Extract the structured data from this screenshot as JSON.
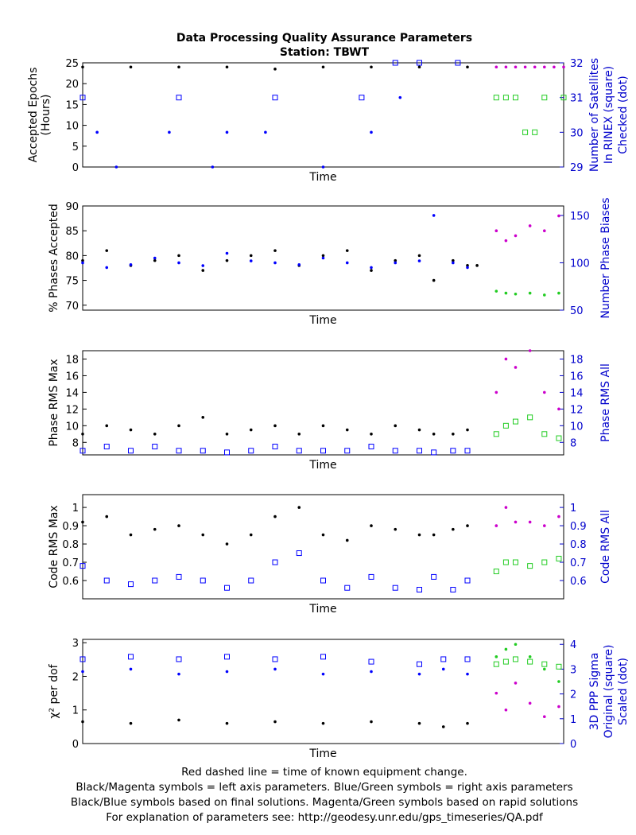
{
  "title": "Data Processing Quality Assurance Parameters",
  "subtitle": "Station: TBWT",
  "footer": [
    "Red dashed line = time of known equipment change.",
    "Black/Magenta symbols = left axis parameters. Blue/Green symbols = right axis parameters",
    "Black/Blue symbols based on final solutions.  Magenta/Green symbols based on rapid solutions",
    "For explanation of parameters see: http://geodesy.unr.edu/gps_timeseries/QA.pdf"
  ],
  "colors": {
    "left_final": "#000000",
    "left_rapid": "#cc00cc",
    "right_final": "#0000ff",
    "right_rapid": "#22cc22",
    "right_axis": "#0000cc"
  },
  "chart_data": [
    {
      "type": "scatter",
      "xlabel": "Time",
      "ylabel_left": [
        "Accepted Epochs",
        "(Hours)"
      ],
      "ylabel_right": [
        "Number of Satellites",
        "In RINEX (square)",
        "Checked (dot)"
      ],
      "ylim_left": [
        0,
        25
      ],
      "ylim_right": [
        29,
        32
      ],
      "yticks_left": [
        0,
        5,
        10,
        15,
        20,
        25
      ],
      "yticks_right": [
        29,
        30,
        31,
        32
      ],
      "series": [
        {
          "role": "left_final",
          "x": [
            0.0,
            0.1,
            0.2,
            0.3,
            0.4,
            0.5,
            0.6,
            0.7,
            0.8
          ],
          "y": [
            24,
            24,
            24,
            24,
            23.5,
            24,
            24,
            24,
            24
          ]
        },
        {
          "role": "left_rapid",
          "x": [
            0.86,
            0.88,
            0.9,
            0.92,
            0.94,
            0.96,
            0.98,
            1.0
          ],
          "y": [
            24,
            24,
            24,
            24,
            24,
            24,
            24,
            24
          ]
        },
        {
          "role": "right_final_square",
          "x": [
            0.0,
            0.2,
            0.4,
            0.58,
            0.65,
            0.7,
            0.78
          ],
          "y": [
            31,
            31,
            31,
            31,
            32,
            32,
            32
          ]
        },
        {
          "role": "right_final_dot",
          "x": [
            0.03,
            0.07,
            0.18,
            0.27,
            0.3,
            0.38,
            0.5,
            0.6,
            0.66
          ],
          "y": [
            30,
            29,
            30,
            29,
            30,
            30,
            29,
            30,
            31
          ]
        },
        {
          "role": "right_rapid_square",
          "x": [
            0.86,
            0.88,
            0.9,
            0.92,
            0.94,
            0.96,
            1.0
          ],
          "y": [
            31,
            31,
            31,
            30,
            30,
            31,
            31
          ]
        }
      ]
    },
    {
      "type": "scatter",
      "xlabel": "Time",
      "ylabel_left": [
        "% Phases Accepted"
      ],
      "ylabel_right": [
        "Number Phase Biases"
      ],
      "ylim_left": [
        69,
        90
      ],
      "ylim_right": [
        50,
        160
      ],
      "yticks_left": [
        70,
        75,
        80,
        85,
        90
      ],
      "yticks_right": [
        50,
        100,
        150
      ],
      "series": [
        {
          "role": "left_final",
          "x": [
            0.0,
            0.05,
            0.1,
            0.15,
            0.2,
            0.25,
            0.3,
            0.35,
            0.4,
            0.45,
            0.5,
            0.55,
            0.6,
            0.65,
            0.7,
            0.73,
            0.77,
            0.8,
            0.82
          ],
          "y": [
            79,
            81,
            78,
            79,
            80,
            77,
            79,
            80,
            81,
            78,
            80,
            81,
            77,
            79,
            80,
            75,
            79,
            78,
            78
          ]
        },
        {
          "role": "left_rapid",
          "x": [
            0.86,
            0.88,
            0.9,
            0.93,
            0.96,
            0.99
          ],
          "y": [
            85,
            83,
            84,
            86,
            85,
            88
          ]
        },
        {
          "role": "right_final",
          "x": [
            0.0,
            0.05,
            0.1,
            0.15,
            0.2,
            0.25,
            0.3,
            0.35,
            0.4,
            0.45,
            0.5,
            0.55,
            0.6,
            0.65,
            0.7,
            0.73,
            0.77,
            0.8
          ],
          "y": [
            100,
            95,
            98,
            105,
            100,
            97,
            110,
            102,
            100,
            98,
            105,
            100,
            95,
            100,
            102,
            150,
            100,
            95
          ]
        },
        {
          "role": "right_rapid",
          "x": [
            0.86,
            0.88,
            0.9,
            0.93,
            0.96,
            0.99
          ],
          "y": [
            70,
            68,
            67,
            68,
            66,
            68
          ]
        }
      ]
    },
    {
      "type": "scatter",
      "xlabel": "Time",
      "ylabel_left": [
        "Phase RMS Max"
      ],
      "ylabel_right": [
        "Phase RMS All"
      ],
      "ylim_left": [
        6.5,
        19
      ],
      "ylim_right": [
        6.5,
        19
      ],
      "yticks_left": [
        8,
        10,
        12,
        14,
        16,
        18
      ],
      "yticks_right": [
        8,
        10,
        12,
        14,
        16,
        18
      ],
      "series": [
        {
          "role": "left_final",
          "x": [
            0.0,
            0.05,
            0.1,
            0.15,
            0.2,
            0.25,
            0.3,
            0.35,
            0.4,
            0.45,
            0.5,
            0.55,
            0.6,
            0.65,
            0.7,
            0.73,
            0.77,
            0.8
          ],
          "y": [
            9,
            10,
            9.5,
            9,
            10,
            11,
            9,
            9.5,
            10,
            9,
            10,
            9.5,
            9,
            10,
            9.5,
            9,
            9,
            9.5
          ]
        },
        {
          "role": "left_rapid",
          "x": [
            0.86,
            0.88,
            0.9,
            0.93,
            0.96,
            0.99
          ],
          "y": [
            14,
            18,
            17,
            19,
            14,
            12
          ]
        },
        {
          "role": "right_final",
          "x": [
            0.0,
            0.05,
            0.1,
            0.15,
            0.2,
            0.25,
            0.3,
            0.35,
            0.4,
            0.45,
            0.5,
            0.55,
            0.6,
            0.65,
            0.7,
            0.73,
            0.77,
            0.8
          ],
          "y": [
            7,
            7.5,
            7,
            7.5,
            7,
            7,
            6.8,
            7,
            7.5,
            7,
            7,
            7,
            7.5,
            7,
            7,
            6.8,
            7,
            7
          ]
        },
        {
          "role": "right_rapid",
          "x": [
            0.86,
            0.88,
            0.9,
            0.93,
            0.96,
            0.99
          ],
          "y": [
            9,
            10,
            10.5,
            11,
            9,
            8.5
          ]
        }
      ]
    },
    {
      "type": "scatter",
      "xlabel": "Time",
      "ylabel_left": [
        "Code RMS Max"
      ],
      "ylabel_right": [
        "Code RMS All"
      ],
      "ylim_left": [
        0.5,
        1.07
      ],
      "ylim_right": [
        0.5,
        1.07
      ],
      "yticks_left": [
        0.6,
        0.7,
        0.8,
        0.9,
        1
      ],
      "yticks_right": [
        0.6,
        0.7,
        0.8,
        0.9,
        1
      ],
      "series": [
        {
          "role": "left_final",
          "x": [
            0.0,
            0.05,
            0.1,
            0.15,
            0.2,
            0.25,
            0.3,
            0.35,
            0.4,
            0.45,
            0.5,
            0.55,
            0.6,
            0.65,
            0.7,
            0.73,
            0.77,
            0.8
          ],
          "y": [
            0.92,
            0.95,
            0.85,
            0.88,
            0.9,
            0.85,
            0.8,
            0.85,
            0.95,
            1.0,
            0.85,
            0.82,
            0.9,
            0.88,
            0.85,
            0.85,
            0.88,
            0.9
          ]
        },
        {
          "role": "left_rapid",
          "x": [
            0.86,
            0.88,
            0.9,
            0.93,
            0.96,
            0.99
          ],
          "y": [
            0.9,
            1.0,
            0.92,
            0.92,
            0.9,
            0.95
          ]
        },
        {
          "role": "right_final",
          "x": [
            0.0,
            0.05,
            0.1,
            0.15,
            0.2,
            0.25,
            0.3,
            0.35,
            0.4,
            0.45,
            0.5,
            0.55,
            0.6,
            0.65,
            0.7,
            0.73,
            0.77,
            0.8
          ],
          "y": [
            0.68,
            0.6,
            0.58,
            0.6,
            0.62,
            0.6,
            0.56,
            0.6,
            0.7,
            0.75,
            0.6,
            0.56,
            0.62,
            0.56,
            0.55,
            0.62,
            0.55,
            0.6
          ]
        },
        {
          "role": "right_rapid",
          "x": [
            0.86,
            0.88,
            0.9,
            0.93,
            0.96,
            0.99
          ],
          "y": [
            0.65,
            0.7,
            0.7,
            0.68,
            0.7,
            0.72
          ]
        }
      ]
    },
    {
      "type": "scatter",
      "xlabel": "Time",
      "ylabel_left": [
        "χ² per dof"
      ],
      "ylabel_right": [
        "3D PPP Sigma",
        "Original (square)",
        "Scaled (dot)"
      ],
      "ylim_left": [
        0,
        3.1
      ],
      "ylim_right": [
        0,
        4.2
      ],
      "yticks_left": [
        0,
        1,
        2,
        3
      ],
      "yticks_right": [
        0,
        1,
        2,
        3,
        4
      ],
      "series": [
        {
          "role": "left_final",
          "x": [
            0.0,
            0.1,
            0.2,
            0.3,
            0.4,
            0.5,
            0.6,
            0.7,
            0.75,
            0.8
          ],
          "y": [
            0.65,
            0.6,
            0.7,
            0.6,
            0.65,
            0.6,
            0.65,
            0.6,
            0.5,
            0.6
          ]
        },
        {
          "role": "left_rapid",
          "x": [
            0.86,
            0.88,
            0.9,
            0.93,
            0.96,
            0.99
          ],
          "y": [
            1.5,
            1.0,
            1.8,
            1.2,
            0.8,
            1.1
          ]
        },
        {
          "role": "right_final_square",
          "x": [
            0.0,
            0.1,
            0.2,
            0.3,
            0.4,
            0.5,
            0.6,
            0.7,
            0.75,
            0.8
          ],
          "y": [
            3.4,
            3.5,
            3.4,
            3.5,
            3.4,
            3.5,
            3.3,
            3.2,
            3.4,
            3.4
          ]
        },
        {
          "role": "right_final_dot",
          "x": [
            0.0,
            0.1,
            0.2,
            0.3,
            0.4,
            0.5,
            0.6,
            0.7,
            0.75,
            0.8
          ],
          "y": [
            2.9,
            3.0,
            2.8,
            2.9,
            3.0,
            2.8,
            2.9,
            2.8,
            3.0,
            2.8
          ]
        },
        {
          "role": "right_rapid_square",
          "x": [
            0.86,
            0.88,
            0.9,
            0.93,
            0.96,
            0.99
          ],
          "y": [
            3.2,
            3.3,
            3.4,
            3.3,
            3.2,
            3.1
          ]
        },
        {
          "role": "right_rapid_dot",
          "x": [
            0.86,
            0.88,
            0.9,
            0.93,
            0.96,
            0.99
          ],
          "y": [
            3.5,
            3.8,
            4.0,
            3.5,
            3.0,
            2.5
          ]
        }
      ]
    }
  ]
}
